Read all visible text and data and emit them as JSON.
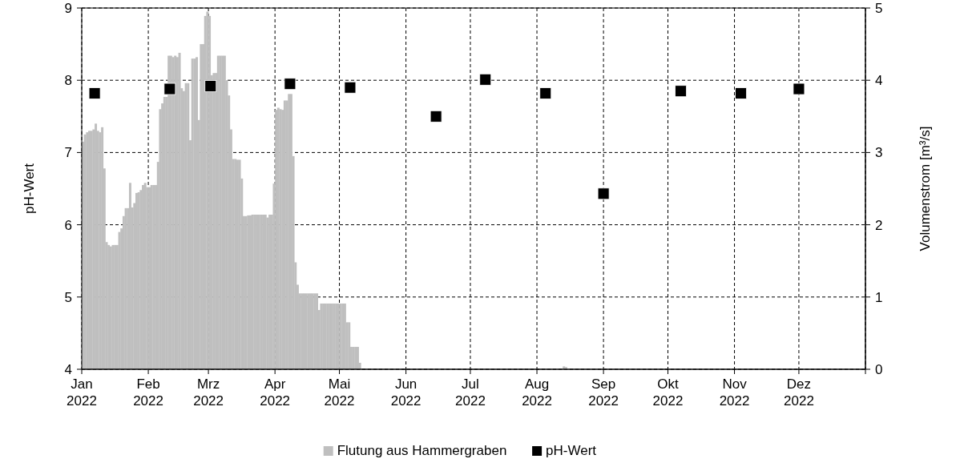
{
  "chart_data": {
    "type": "bar",
    "ylabel": "pH-Wert",
    "y2label": "Volumenstrom [m³/s]",
    "xlim": [
      "2022-01-01",
      "2023-01-01"
    ],
    "xticks": [
      {
        "value": "2022-01-01",
        "label": "Jan 2022"
      },
      {
        "value": "2022-02-01",
        "label": "Feb 2022"
      },
      {
        "value": "2022-03-01",
        "label": "Mrz 2022"
      },
      {
        "value": "2022-04-01",
        "label": "Apr 2022"
      },
      {
        "value": "2022-05-01",
        "label": "Mai 2022"
      },
      {
        "value": "2022-06-01",
        "label": "Jun 2022"
      },
      {
        "value": "2022-07-01",
        "label": "Jul 2022"
      },
      {
        "value": "2022-08-01",
        "label": "Aug 2022"
      },
      {
        "value": "2022-09-01",
        "label": "Sep 2022"
      },
      {
        "value": "2022-10-01",
        "label": "Okt 2022"
      },
      {
        "value": "2022-11-01",
        "label": "Nov 2022"
      },
      {
        "value": "2022-12-01",
        "label": "Dez 2022"
      },
      {
        "value": "2023-01-01",
        "label": null
      }
    ],
    "ylim": [
      4,
      9
    ],
    "yticks": [
      4,
      5,
      6,
      7,
      8,
      9
    ],
    "y2lim": [
      0,
      5
    ],
    "y2ticks": [
      0,
      1,
      2,
      3,
      4,
      5
    ],
    "grid": true,
    "legend": "bottom",
    "series": [
      {
        "name": "Flutung aus Hammergraben",
        "axis": "y2",
        "color": "#bfbfbf",
        "x": [
          "2022-01-01",
          "2022-01-02",
          "2022-01-03",
          "2022-01-04",
          "2022-01-05",
          "2022-01-06",
          "2022-01-07",
          "2022-01-08",
          "2022-01-09",
          "2022-01-10",
          "2022-01-11",
          "2022-01-12",
          "2022-01-13",
          "2022-01-14",
          "2022-01-15",
          "2022-01-16",
          "2022-01-17",
          "2022-01-18",
          "2022-01-19",
          "2022-01-20",
          "2022-01-21",
          "2022-01-22",
          "2022-01-23",
          "2022-01-24",
          "2022-01-25",
          "2022-01-26",
          "2022-01-27",
          "2022-01-28",
          "2022-01-29",
          "2022-01-30",
          "2022-01-31",
          "2022-02-01",
          "2022-02-02",
          "2022-02-03",
          "2022-02-04",
          "2022-02-05",
          "2022-02-06",
          "2022-02-07",
          "2022-02-08",
          "2022-02-09",
          "2022-02-10",
          "2022-02-11",
          "2022-02-12",
          "2022-02-13",
          "2022-02-14",
          "2022-02-15",
          "2022-02-16",
          "2022-02-17",
          "2022-02-18",
          "2022-02-19",
          "2022-02-20",
          "2022-02-21",
          "2022-02-22",
          "2022-02-23",
          "2022-02-24",
          "2022-02-25",
          "2022-02-26",
          "2022-02-27",
          "2022-02-28",
          "2022-03-01",
          "2022-03-02",
          "2022-03-03",
          "2022-03-04",
          "2022-03-05",
          "2022-03-06",
          "2022-03-07",
          "2022-03-08",
          "2022-03-09",
          "2022-03-10",
          "2022-03-11",
          "2022-03-12",
          "2022-03-13",
          "2022-03-14",
          "2022-03-15",
          "2022-03-16",
          "2022-03-17",
          "2022-03-18",
          "2022-03-19",
          "2022-03-20",
          "2022-03-21",
          "2022-03-22",
          "2022-03-23",
          "2022-03-24",
          "2022-03-25",
          "2022-03-26",
          "2022-03-27",
          "2022-03-28",
          "2022-03-29",
          "2022-03-30",
          "2022-03-31",
          "2022-04-01",
          "2022-04-02",
          "2022-04-03",
          "2022-04-04",
          "2022-04-05",
          "2022-04-06",
          "2022-04-07",
          "2022-04-08",
          "2022-04-09",
          "2022-04-10",
          "2022-04-11",
          "2022-04-12",
          "2022-04-13",
          "2022-04-14",
          "2022-04-15",
          "2022-04-16",
          "2022-04-17",
          "2022-04-18",
          "2022-04-19",
          "2022-04-20",
          "2022-04-21",
          "2022-04-22",
          "2022-04-23",
          "2022-04-24",
          "2022-04-25",
          "2022-04-26",
          "2022-04-27",
          "2022-04-28",
          "2022-04-29",
          "2022-04-30",
          "2022-05-01",
          "2022-05-02",
          "2022-05-03",
          "2022-05-04",
          "2022-05-05",
          "2022-05-06",
          "2022-05-07",
          "2022-05-08",
          "2022-05-09",
          "2022-05-10",
          "2022-08-13",
          "2022-08-14"
        ],
        "values": [
          3.15,
          3.25,
          3.28,
          3.3,
          3.3,
          3.32,
          3.4,
          3.3,
          3.28,
          3.35,
          2.78,
          1.76,
          1.72,
          1.7,
          1.72,
          1.72,
          1.72,
          1.9,
          1.95,
          2.12,
          2.23,
          2.23,
          2.58,
          2.24,
          2.3,
          2.44,
          2.45,
          2.48,
          2.55,
          2.58,
          2.52,
          2.52,
          2.55,
          2.55,
          2.55,
          2.87,
          3.6,
          3.68,
          3.77,
          3.77,
          4.34,
          4.34,
          4.32,
          4.34,
          4.32,
          4.38,
          3.89,
          3.85,
          3.96,
          3.96,
          3.17,
          4.3,
          4.3,
          4.32,
          3.45,
          4.5,
          4.5,
          4.89,
          4.95,
          4.89,
          4.07,
          4.1,
          4.1,
          4.34,
          4.34,
          4.34,
          4.34,
          4.0,
          3.79,
          3.32,
          2.91,
          2.91,
          2.9,
          2.9,
          2.64,
          2.12,
          2.12,
          2.13,
          2.13,
          2.14,
          2.14,
          2.14,
          2.14,
          2.14,
          2.14,
          2.14,
          2.1,
          2.14,
          2.14,
          2.57,
          3.59,
          3.62,
          3.6,
          3.59,
          3.72,
          3.72,
          3.81,
          3.81,
          2.95,
          1.48,
          1.17,
          1.05,
          1.05,
          1.05,
          1.05,
          1.05,
          1.05,
          1.05,
          1.05,
          1.05,
          0.82,
          0.91,
          0.91,
          0.91,
          0.91,
          0.91,
          0.91,
          0.91,
          0.91,
          0.91,
          0.91,
          0.91,
          0.91,
          0.65,
          0.65,
          0.31,
          0.31,
          0.31,
          0.31,
          0.09,
          0.04,
          0.03
        ]
      },
      {
        "name": "pH-Wert",
        "type": "scatter",
        "color": "#000000",
        "marker": "square",
        "x": [
          "2022-01-07",
          "2022-02-11",
          "2022-03-02",
          "2022-04-08",
          "2022-05-06",
          "2022-06-15",
          "2022-07-08",
          "2022-08-05",
          "2022-09-01",
          "2022-10-07",
          "2022-11-04",
          "2022-12-01"
        ],
        "values": [
          7.82,
          7.88,
          7.92,
          7.95,
          7.9,
          7.5,
          8.01,
          7.82,
          6.43,
          7.85,
          7.82,
          7.88
        ]
      }
    ]
  }
}
